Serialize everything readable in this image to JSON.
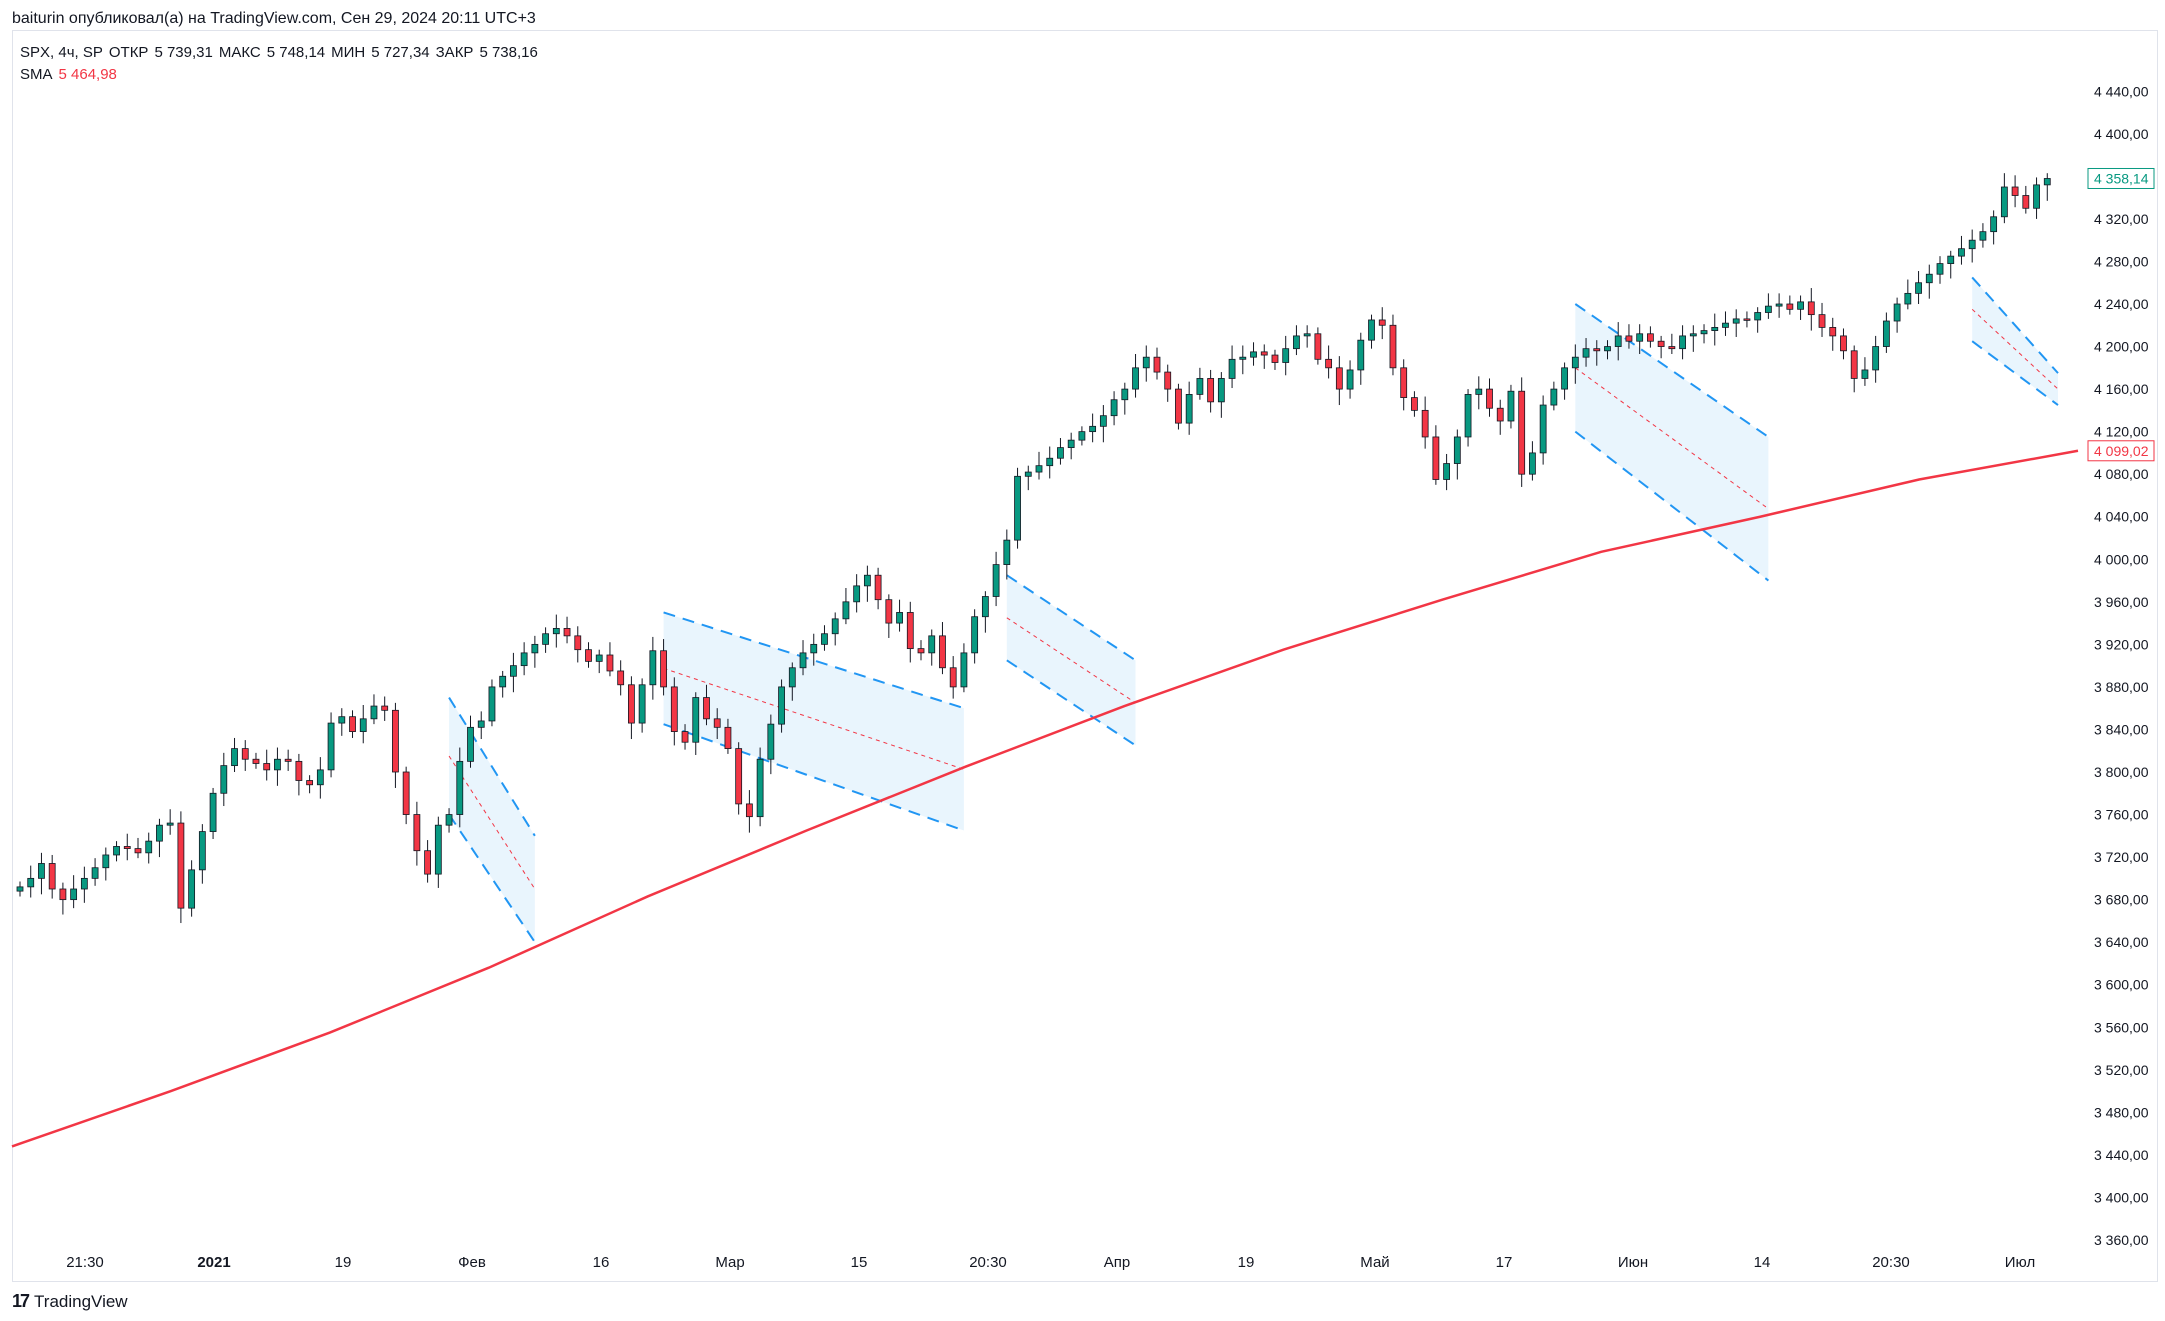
{
  "header": {
    "attribution": "baiturin опубликовал(а) на TradingView.com, Сен 29, 2024 20:11 UTC+3"
  },
  "legend": {
    "symbol": "SPX, 4ч, SP",
    "open_label": "ОТКР",
    "open_value": "5 739,31",
    "high_label": "МАКС",
    "high_value": "5 748,14",
    "low_label": "МИН",
    "low_value": "5 727,34",
    "close_label": "ЗАКР",
    "close_value": "5 738,16",
    "sma_label": "SMA",
    "sma_value": "5 464,98"
  },
  "footer": {
    "brand": "TradingView",
    "logo_icon": "tradingview-logo-icon"
  },
  "colors": {
    "up": "#089981",
    "down": "#f23645",
    "sma": "#f23645",
    "channel": "#2196f3",
    "channel_fill": "#e3f2fd",
    "midline": "#f23645",
    "grid_text": "#131722",
    "last_price": "#089981"
  },
  "chart_data": {
    "type": "candlestick",
    "title": "",
    "ylim": [
      3360,
      4460
    ],
    "y_ticks": [
      "3 360,00",
      "3 400,00",
      "3 440,00",
      "3 480,00",
      "3 520,00",
      "3 560,00",
      "3 600,00",
      "3 640,00",
      "3 680,00",
      "3 720,00",
      "3 760,00",
      "3 800,00",
      "3 840,00",
      "3 880,00",
      "3 920,00",
      "3 960,00",
      "4 000,00",
      "4 040,00",
      "4 080,00",
      "4 120,00",
      "4 160,00",
      "4 200,00",
      "4 240,00",
      "4 280,00",
      "4 320,00",
      "4 360,00",
      "4 400,00",
      "4 440,00"
    ],
    "x_ticks": [
      "21:30",
      "2021",
      "19",
      "Фев",
      "16",
      "Мар",
      "15",
      "20:30",
      "Апр",
      "19",
      "Май",
      "17",
      "Июн",
      "14",
      "20:30",
      "Июл"
    ],
    "last_price_label": "4 358,14",
    "sma_label": "4 099,02",
    "sma_series": [
      3448,
      3500,
      3555,
      3616,
      3683,
      3745,
      3805,
      3862,
      3915,
      3962,
      4007,
      4040,
      4075,
      4102
    ],
    "candles": {
      "closes": [
        3692,
        3700,
        3714,
        3690,
        3680,
        3690,
        3700,
        3710,
        3722,
        3730,
        3728,
        3724,
        3735,
        3750,
        3752,
        3672,
        3708,
        3744,
        3780,
        3806,
        3822,
        3812,
        3808,
        3802,
        3812,
        3810,
        3792,
        3788,
        3802,
        3846,
        3852,
        3838,
        3850,
        3862,
        3858,
        3800,
        3760,
        3726,
        3704,
        3750,
        3760,
        3810,
        3842,
        3848,
        3880,
        3890,
        3900,
        3912,
        3920,
        3930,
        3935,
        3928,
        3915,
        3904,
        3910,
        3895,
        3882,
        3846,
        3882,
        3914,
        3880,
        3838,
        3828,
        3870,
        3850,
        3842,
        3822,
        3770,
        3758,
        3812,
        3845,
        3880,
        3898,
        3912,
        3920,
        3930,
        3944,
        3960,
        3975,
        3985,
        3962,
        3940,
        3950,
        3916,
        3912,
        3928,
        3898,
        3880,
        3912,
        3946,
        3965,
        3995,
        4018,
        4078,
        4082,
        4088,
        4095,
        4105,
        4112,
        4120,
        4125,
        4135,
        4150,
        4160,
        4180,
        4190,
        4176,
        4160,
        4128,
        4155,
        4170,
        4148,
        4170,
        4188,
        4190,
        4195,
        4192,
        4185,
        4198,
        4210,
        4212,
        4188,
        4180,
        4160,
        4178,
        4206,
        4225,
        4220,
        4180,
        4152,
        4140,
        4115,
        4075,
        4090,
        4115,
        4155,
        4160,
        4142,
        4130,
        4158,
        4080,
        4100,
        4145,
        4160,
        4180,
        4190,
        4198,
        4196,
        4200,
        4210,
        4205,
        4212,
        4205,
        4200,
        4198,
        4210,
        4212,
        4215,
        4218,
        4222,
        4226,
        4225,
        4232,
        4238,
        4240,
        4235,
        4242,
        4230,
        4218,
        4210,
        4196,
        4170,
        4178,
        4200,
        4224,
        4240,
        4250,
        4260,
        4268,
        4278,
        4285,
        4292,
        4300,
        4308,
        4322,
        4350,
        4342,
        4330,
        4352,
        4358
      ]
    },
    "annotations": "descending parallel channels with dashed median line"
  }
}
